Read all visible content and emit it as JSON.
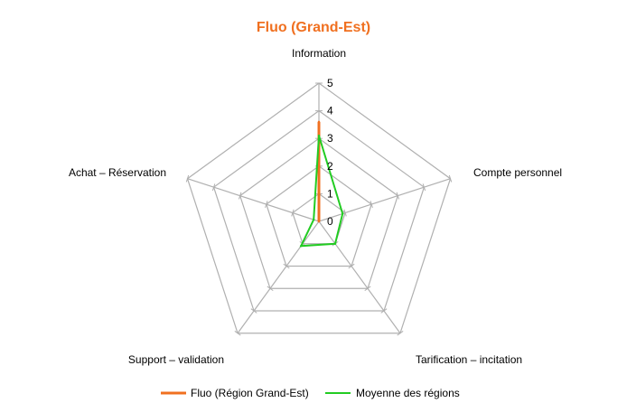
{
  "chart_data": {
    "type": "radar",
    "title": "Fluo (Grand-Est)",
    "categories": [
      "Information",
      "Compte personnel",
      "Tarification – incitation",
      "Support – validation",
      "Achat – Réservation"
    ],
    "rlim": [
      0,
      5
    ],
    "ticks": [
      "0",
      "1",
      "2",
      "3",
      "4",
      "5"
    ],
    "series": [
      {
        "name": "Fluo (Région Grand-Est)",
        "color": "#f07020",
        "values": [
          3.6,
          0,
          0,
          0,
          0
        ]
      },
      {
        "name": "Moyenne des régions",
        "color": "#22cc22",
        "values": [
          3.1,
          0.9,
          1.0,
          1.1,
          0.2
        ]
      }
    ],
    "grid": true,
    "legend_position": "bottom",
    "colors": {
      "title": "#f07020",
      "grid": "#b0b0b0"
    }
  }
}
